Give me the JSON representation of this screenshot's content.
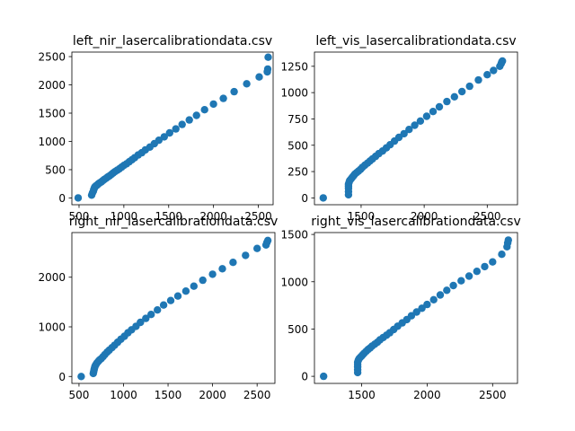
{
  "chart_data": [
    {
      "type": "scatter",
      "title": "left_nir_lasercalibrationdata.csv",
      "xlim": [
        420,
        2665
      ],
      "ylim": [
        -120,
        2580
      ],
      "xticks": [
        500,
        1000,
        1500,
        2000,
        2500
      ],
      "yticks": [
        0,
        500,
        1000,
        1500,
        2000,
        2500
      ],
      "color": "#1f77b4",
      "x": [
        490,
        640,
        650,
        660,
        665,
        670,
        675,
        680,
        690,
        700,
        710,
        720,
        735,
        750,
        765,
        780,
        800,
        820,
        840,
        860,
        880,
        900,
        925,
        950,
        975,
        1000,
        1030,
        1060,
        1090,
        1120,
        1160,
        1200,
        1240,
        1290,
        1340,
        1390,
        1450,
        1510,
        1580,
        1650,
        1730,
        1810,
        1900,
        2000,
        2110,
        2230,
        2370,
        2510,
        2600,
        2605,
        2610
      ],
      "y": [
        0,
        50,
        90,
        120,
        150,
        170,
        190,
        200,
        215,
        225,
        240,
        255,
        270,
        285,
        305,
        325,
        345,
        370,
        390,
        415,
        440,
        465,
        490,
        515,
        545,
        575,
        605,
        640,
        675,
        710,
        760,
        800,
        850,
        900,
        960,
        1020,
        1080,
        1150,
        1220,
        1300,
        1380,
        1460,
        1560,
        1660,
        1760,
        1880,
        2020,
        2140,
        2230,
        2280,
        2490
      ]
    },
    {
      "type": "scatter",
      "title": "left_vis_lasercalibrationdata.csv",
      "xlim": [
        1130,
        2740
      ],
      "ylim": [
        -65,
        1385
      ],
      "xticks": [
        1500,
        2000,
        2500
      ],
      "yticks": [
        0,
        250,
        500,
        750,
        1000,
        1250
      ],
      "color": "#1f77b4",
      "x": [
        1200,
        1400,
        1400,
        1400,
        1400,
        1400,
        1405,
        1410,
        1420,
        1430,
        1440,
        1450,
        1465,
        1480,
        1495,
        1510,
        1530,
        1550,
        1570,
        1590,
        1615,
        1640,
        1670,
        1700,
        1730,
        1765,
        1800,
        1840,
        1880,
        1925,
        1970,
        2020,
        2070,
        2120,
        2180,
        2240,
        2300,
        2360,
        2430,
        2500,
        2550,
        2600,
        2610,
        2615,
        2620
      ],
      "y": [
        0,
        30,
        60,
        90,
        110,
        130,
        150,
        165,
        180,
        195,
        210,
        225,
        240,
        255,
        270,
        290,
        310,
        330,
        350,
        370,
        395,
        420,
        445,
        475,
        505,
        540,
        575,
        610,
        650,
        690,
        730,
        775,
        820,
        865,
        915,
        960,
        1010,
        1060,
        1120,
        1170,
        1210,
        1250,
        1275,
        1290,
        1300
      ]
    },
    {
      "type": "scatter",
      "title": "right_nir_lasercalibrationdata.csv",
      "xlim": [
        420,
        2700
      ],
      "ylim": [
        -140,
        2900
      ],
      "xticks": [
        500,
        1000,
        1500,
        2000,
        2500
      ],
      "yticks": [
        0,
        1000,
        2000
      ],
      "color": "#1f77b4",
      "x": [
        525,
        660,
        665,
        670,
        675,
        680,
        690,
        700,
        715,
        730,
        750,
        770,
        790,
        815,
        840,
        870,
        900,
        935,
        970,
        1010,
        1050,
        1090,
        1140,
        1190,
        1250,
        1310,
        1380,
        1450,
        1530,
        1610,
        1700,
        1790,
        1890,
        2000,
        2110,
        2230,
        2370,
        2500,
        2600,
        2610,
        2620
      ],
      "y": [
        0,
        60,
        100,
        140,
        180,
        210,
        240,
        270,
        300,
        330,
        360,
        400,
        440,
        490,
        530,
        580,
        630,
        690,
        750,
        810,
        880,
        940,
        1010,
        1090,
        1170,
        1250,
        1340,
        1440,
        1530,
        1620,
        1720,
        1820,
        1940,
        2060,
        2170,
        2300,
        2440,
        2580,
        2650,
        2700,
        2740
      ]
    },
    {
      "type": "scatter",
      "title": "right_vis_lasercalibrationdata.csv",
      "xlim": [
        1140,
        2690
      ],
      "ylim": [
        -75,
        1520
      ],
      "xticks": [
        1500,
        2000,
        2500
      ],
      "yticks": [
        0,
        500,
        1000,
        1500
      ],
      "color": "#1f77b4",
      "x": [
        1210,
        1470,
        1470,
        1470,
        1470,
        1470,
        1475,
        1480,
        1490,
        1500,
        1510,
        1520,
        1535,
        1550,
        1565,
        1580,
        1600,
        1620,
        1640,
        1665,
        1690,
        1715,
        1745,
        1775,
        1810,
        1845,
        1880,
        1920,
        1960,
        2000,
        2050,
        2100,
        2150,
        2200,
        2260,
        2320,
        2380,
        2440,
        2500,
        2570,
        2610,
        2615,
        2620
      ],
      "y": [
        0,
        40,
        70,
        100,
        125,
        150,
        170,
        185,
        200,
        215,
        230,
        245,
        265,
        285,
        300,
        320,
        340,
        360,
        385,
        410,
        435,
        460,
        495,
        530,
        565,
        600,
        640,
        680,
        720,
        760,
        810,
        860,
        910,
        960,
        1010,
        1060,
        1110,
        1160,
        1210,
        1290,
        1370,
        1410,
        1440
      ]
    }
  ]
}
